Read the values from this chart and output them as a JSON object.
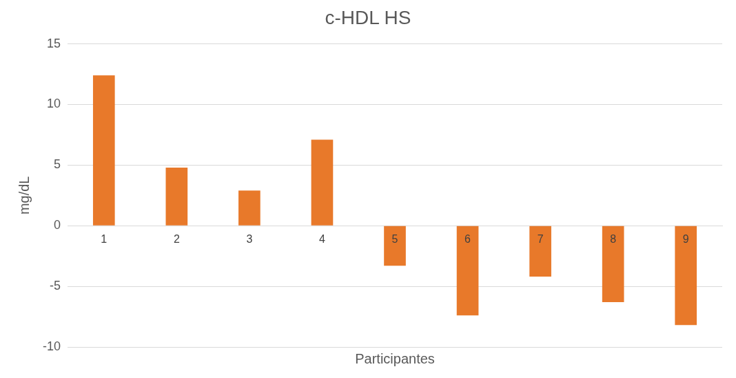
{
  "chart_data": {
    "type": "bar",
    "title": "c-HDL HS",
    "xlabel": "Participantes",
    "ylabel": "mg/dL",
    "categories": [
      "1",
      "2",
      "3",
      "4",
      "5",
      "6",
      "7",
      "8",
      "9"
    ],
    "values": [
      12.4,
      4.8,
      2.9,
      7.1,
      -3.3,
      -7.4,
      -4.2,
      -6.3,
      -8.2
    ],
    "color": "#e8792a",
    "ylim": [
      -10,
      15
    ],
    "yticks": [
      -10,
      -5,
      0,
      5,
      10,
      15
    ],
    "grid": "y"
  }
}
